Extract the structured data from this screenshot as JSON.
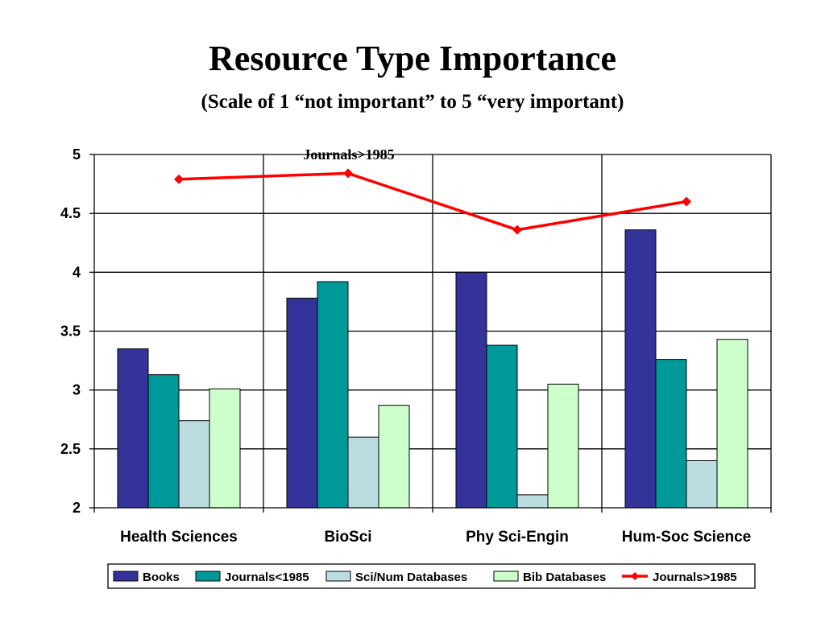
{
  "title": "Resource Type Importance",
  "subtitle": "(Scale of 1 “not important” to 5 “very important)",
  "chart_data": {
    "type": "bar",
    "categories": [
      "Health Sciences",
      "BioSci",
      "Phy Sci-Engin",
      "Hum-Soc Science"
    ],
    "series": [
      {
        "name": "Books",
        "type": "bar",
        "color": "#333399",
        "values": [
          3.35,
          3.78,
          4.0,
          4.36
        ]
      },
      {
        "name": "Journals<1985",
        "type": "bar",
        "color": "#009999",
        "values": [
          3.13,
          3.92,
          3.38,
          3.26
        ]
      },
      {
        "name": "Sci/Num Databases",
        "type": "bar",
        "color": "#BBDDE0",
        "values": [
          2.74,
          2.6,
          2.11,
          2.4
        ]
      },
      {
        "name": "Bib Databases",
        "type": "bar",
        "color": "#CCFFCC",
        "values": [
          3.01,
          2.87,
          3.05,
          3.43
        ]
      },
      {
        "name": "Journals>1985",
        "type": "line",
        "color": "#FF0000",
        "values": [
          4.79,
          4.84,
          4.36,
          4.6
        ]
      }
    ],
    "annotation": "Journals>1985",
    "ylim": [
      2,
      5
    ],
    "y_ticks": [
      "2",
      "2.5",
      "3",
      "3.5",
      "4",
      "4.5",
      "5"
    ],
    "grid": true,
    "legend_position": "bottom"
  }
}
